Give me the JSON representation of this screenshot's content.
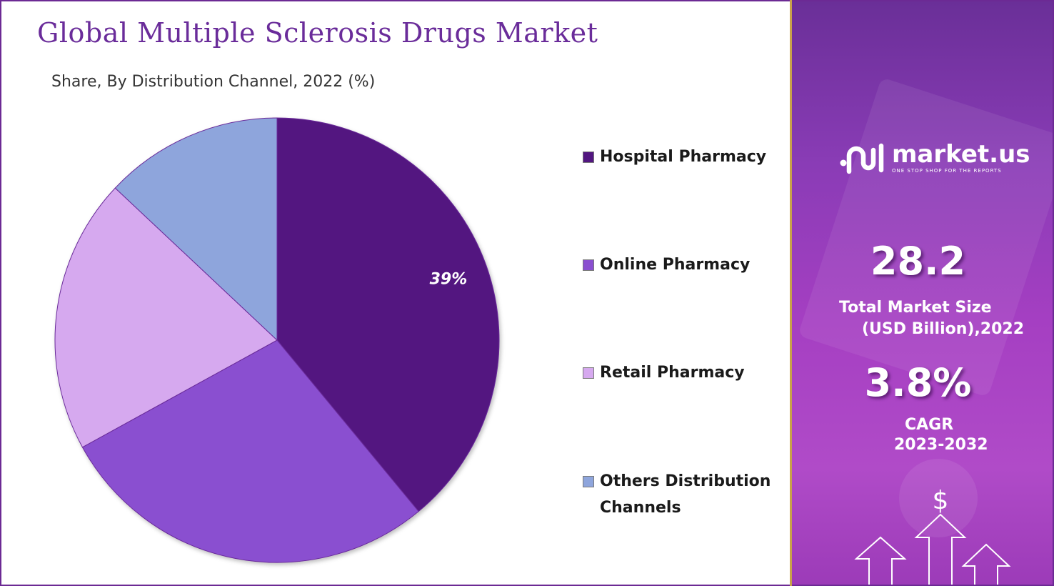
{
  "chart_data": {
    "type": "pie",
    "title": "Global Multiple Sclerosis Drugs Market",
    "subtitle": "Share, By Distribution Channel, 2022 (%)",
    "slices": [
      {
        "label": "Hospital Pharmacy",
        "value": 39,
        "color": "#521680",
        "data_label": "39%"
      },
      {
        "label": "Online Pharmacy",
        "value": 28,
        "color": "#8a4fd0",
        "data_label": ""
      },
      {
        "label": "Retail Pharmacy",
        "value": 20,
        "color": "#d6a9ef",
        "data_label": ""
      },
      {
        "label": "Others Distribution Channels",
        "value": 13,
        "color": "#8ea5dc",
        "data_label": ""
      }
    ],
    "legend_position": "right",
    "start_angle_deg": 0,
    "direction": "clockwise"
  },
  "brand": {
    "name": "market.us",
    "tagline": "ONE STOP SHOP FOR THE REPORTS"
  },
  "stats": {
    "market_size_value": "28.2",
    "market_size_label_line1": "Total Market Size",
    "market_size_label_line2": "(USD Billion),2022",
    "cagr_value": "3.8%",
    "cagr_label_line1": "CAGR",
    "cagr_label_line2": "2023-2032",
    "currency_symbol": "$"
  },
  "colors": {
    "title": "#6a2c9a",
    "frame": "#6c2a94",
    "divider": "#c8a24a",
    "panel_top": "#6a2f98",
    "panel_bottom": "#b04bc8"
  }
}
